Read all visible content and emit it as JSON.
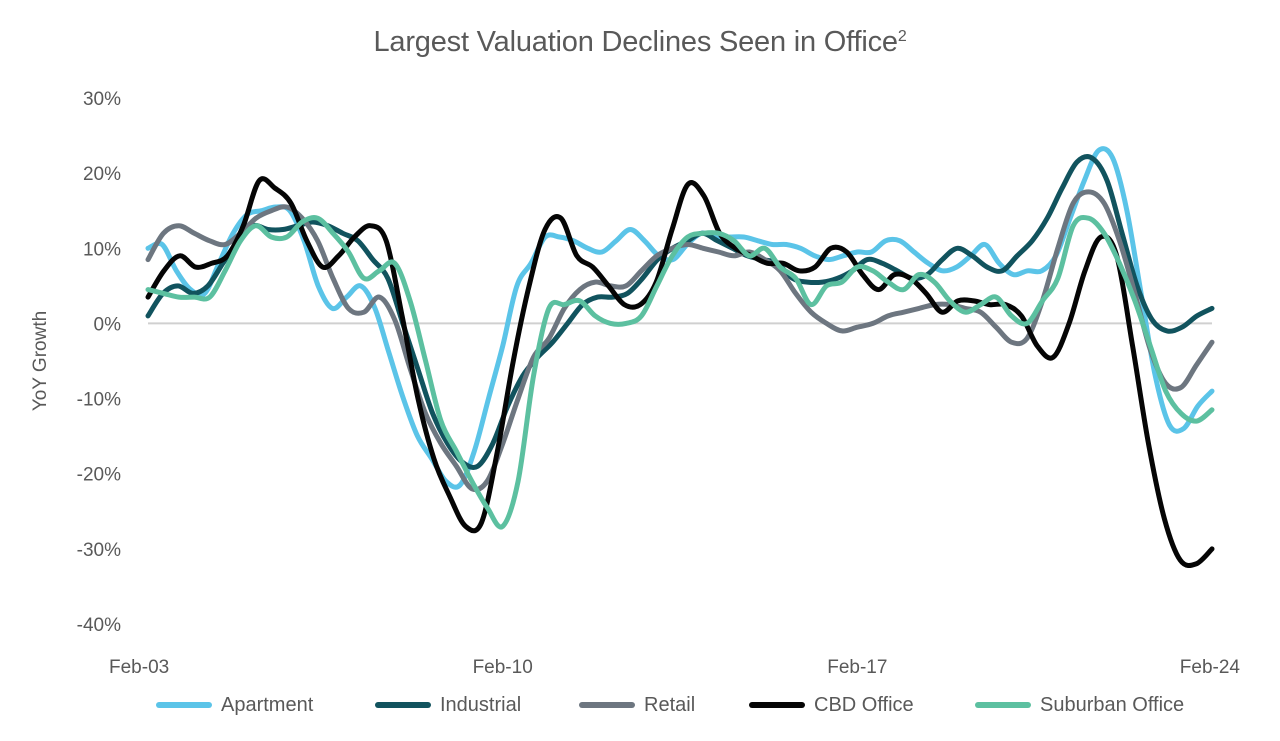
{
  "chart_data": {
    "type": "line",
    "title": "Largest Valuation Declines Seen in Office",
    "title_superscript": "2",
    "xlabel": "",
    "ylabel": "YoY Growth",
    "ylim": [
      -40,
      30
    ],
    "yticks": [
      30,
      20,
      10,
      0,
      -10,
      -20,
      -30,
      -40
    ],
    "ytick_labels": [
      "30%",
      "20%",
      "10%",
      "0%",
      "-10%",
      "-20%",
      "-30%",
      "-40%"
    ],
    "xtick_labels": [
      "Feb-03",
      "Feb-10",
      "Feb-17",
      "Feb-24"
    ],
    "xtick_index": [
      0,
      28,
      56,
      84
    ],
    "x_frequency": "quarterly",
    "x_start": "Feb-03",
    "x_end": "Feb-24",
    "zero_line": true,
    "grid": false,
    "legend_position": "bottom",
    "series": [
      {
        "name": "Apartment",
        "color": "#5BC4E8",
        "values": [
          10,
          10.5,
          7,
          4.5,
          4,
          8,
          12,
          14.5,
          15,
          15.5,
          15,
          11,
          5,
          2,
          3.5,
          5,
          2,
          -4,
          -10,
          -15,
          -18,
          -21,
          -21.5,
          -17,
          -10,
          -3,
          5,
          8,
          11.5,
          11.5,
          11,
          10,
          9.5,
          11,
          12.5,
          11,
          9,
          8.5,
          10.5,
          12,
          11.5,
          11.5,
          11.5,
          11,
          10.5,
          10.5,
          10,
          9,
          8.5,
          9,
          9.5,
          9.5,
          11,
          11,
          9.5,
          8,
          7,
          7.5,
          9,
          10.5,
          8,
          6.5,
          7,
          7,
          9,
          14,
          19,
          23,
          22,
          15,
          4,
          -7,
          -13.5,
          -14,
          -11,
          -9
        ]
      },
      {
        "name": "Industrial",
        "color": "#11535E",
        "values": [
          1,
          4,
          5,
          4,
          5,
          8,
          11,
          13,
          12.5,
          12.5,
          13,
          13.5,
          13,
          12,
          11,
          8.5,
          6,
          0,
          -6,
          -12,
          -16,
          -18.5,
          -19,
          -16,
          -11,
          -7,
          -4.5,
          -2.5,
          0,
          2.5,
          3.5,
          3.5,
          4,
          6,
          8.5,
          10,
          11,
          12,
          11,
          10,
          9,
          8.5,
          8,
          6,
          5.5,
          5.5,
          6,
          7,
          8.5,
          8,
          7,
          6,
          6.5,
          8.5,
          10,
          9,
          7.5,
          7,
          9,
          11,
          14,
          18,
          21.5,
          22,
          19,
          12,
          5,
          0.5,
          -1,
          -0.5,
          1,
          2
        ]
      },
      {
        "name": "Retail",
        "color": "#6D7680",
        "values": [
          8.5,
          12,
          13,
          12,
          11,
          10.5,
          12,
          14,
          15,
          15.5,
          14,
          11,
          6,
          2,
          1.5,
          3.5,
          0.5,
          -6,
          -12,
          -16,
          -19,
          -22,
          -21,
          -16,
          -10,
          -4.5,
          -2,
          2,
          4.5,
          5.5,
          5,
          5,
          7,
          9,
          10,
          10.5,
          10,
          9.5,
          9,
          9.5,
          8.5,
          7,
          4,
          1.5,
          0,
          -1,
          -0.5,
          0,
          1,
          1.5,
          2,
          2.5,
          2.5,
          2,
          1.5,
          -0.5,
          -2.5,
          -2,
          3,
          10,
          16,
          17.5,
          16,
          11,
          4,
          -3.5,
          -8,
          -8.5,
          -5.5,
          -2.5
        ]
      },
      {
        "name": "CBD Office",
        "color": "#050505",
        "values": [
          3.5,
          7,
          9,
          7.5,
          8,
          9,
          13,
          19,
          18,
          16,
          11,
          7.5,
          9,
          11.5,
          13,
          11,
          1,
          -10,
          -18,
          -23,
          -27,
          -26.5,
          -17,
          -5,
          5,
          12.5,
          14,
          9,
          7.5,
          5,
          2.5,
          2.5,
          5.5,
          12.5,
          18.5,
          17,
          12,
          10,
          9,
          8,
          8,
          7,
          7.5,
          10,
          9.5,
          6.5,
          4.5,
          6.5,
          6,
          4,
          1.5,
          3,
          3,
          2.5,
          2.5,
          1,
          -3,
          -4.5,
          0,
          7,
          11.5,
          9,
          -3,
          -16,
          -26,
          -31.5,
          -32,
          -30
        ]
      },
      {
        "name": "Suburban Office",
        "color": "#5CC0A0",
        "values": [
          4.5,
          4,
          3.5,
          3.5,
          3.5,
          7,
          11,
          13,
          11.5,
          11.5,
          13.5,
          14,
          12,
          9.5,
          6,
          7,
          8,
          3,
          -5,
          -13,
          -17,
          -21,
          -24.5,
          -27,
          -21,
          -7,
          2,
          2.5,
          3,
          1,
          0,
          0,
          1,
          5,
          9,
          11.5,
          12,
          12,
          11,
          9,
          10,
          7.5,
          6,
          2.5,
          5,
          5.5,
          7.5,
          7,
          5.5,
          4.5,
          6.5,
          5.5,
          3,
          1.5,
          2.5,
          3.5,
          1,
          0,
          3,
          6,
          13,
          14,
          12,
          8,
          3,
          -3,
          -9,
          -12,
          -13,
          -11.5
        ]
      }
    ]
  }
}
